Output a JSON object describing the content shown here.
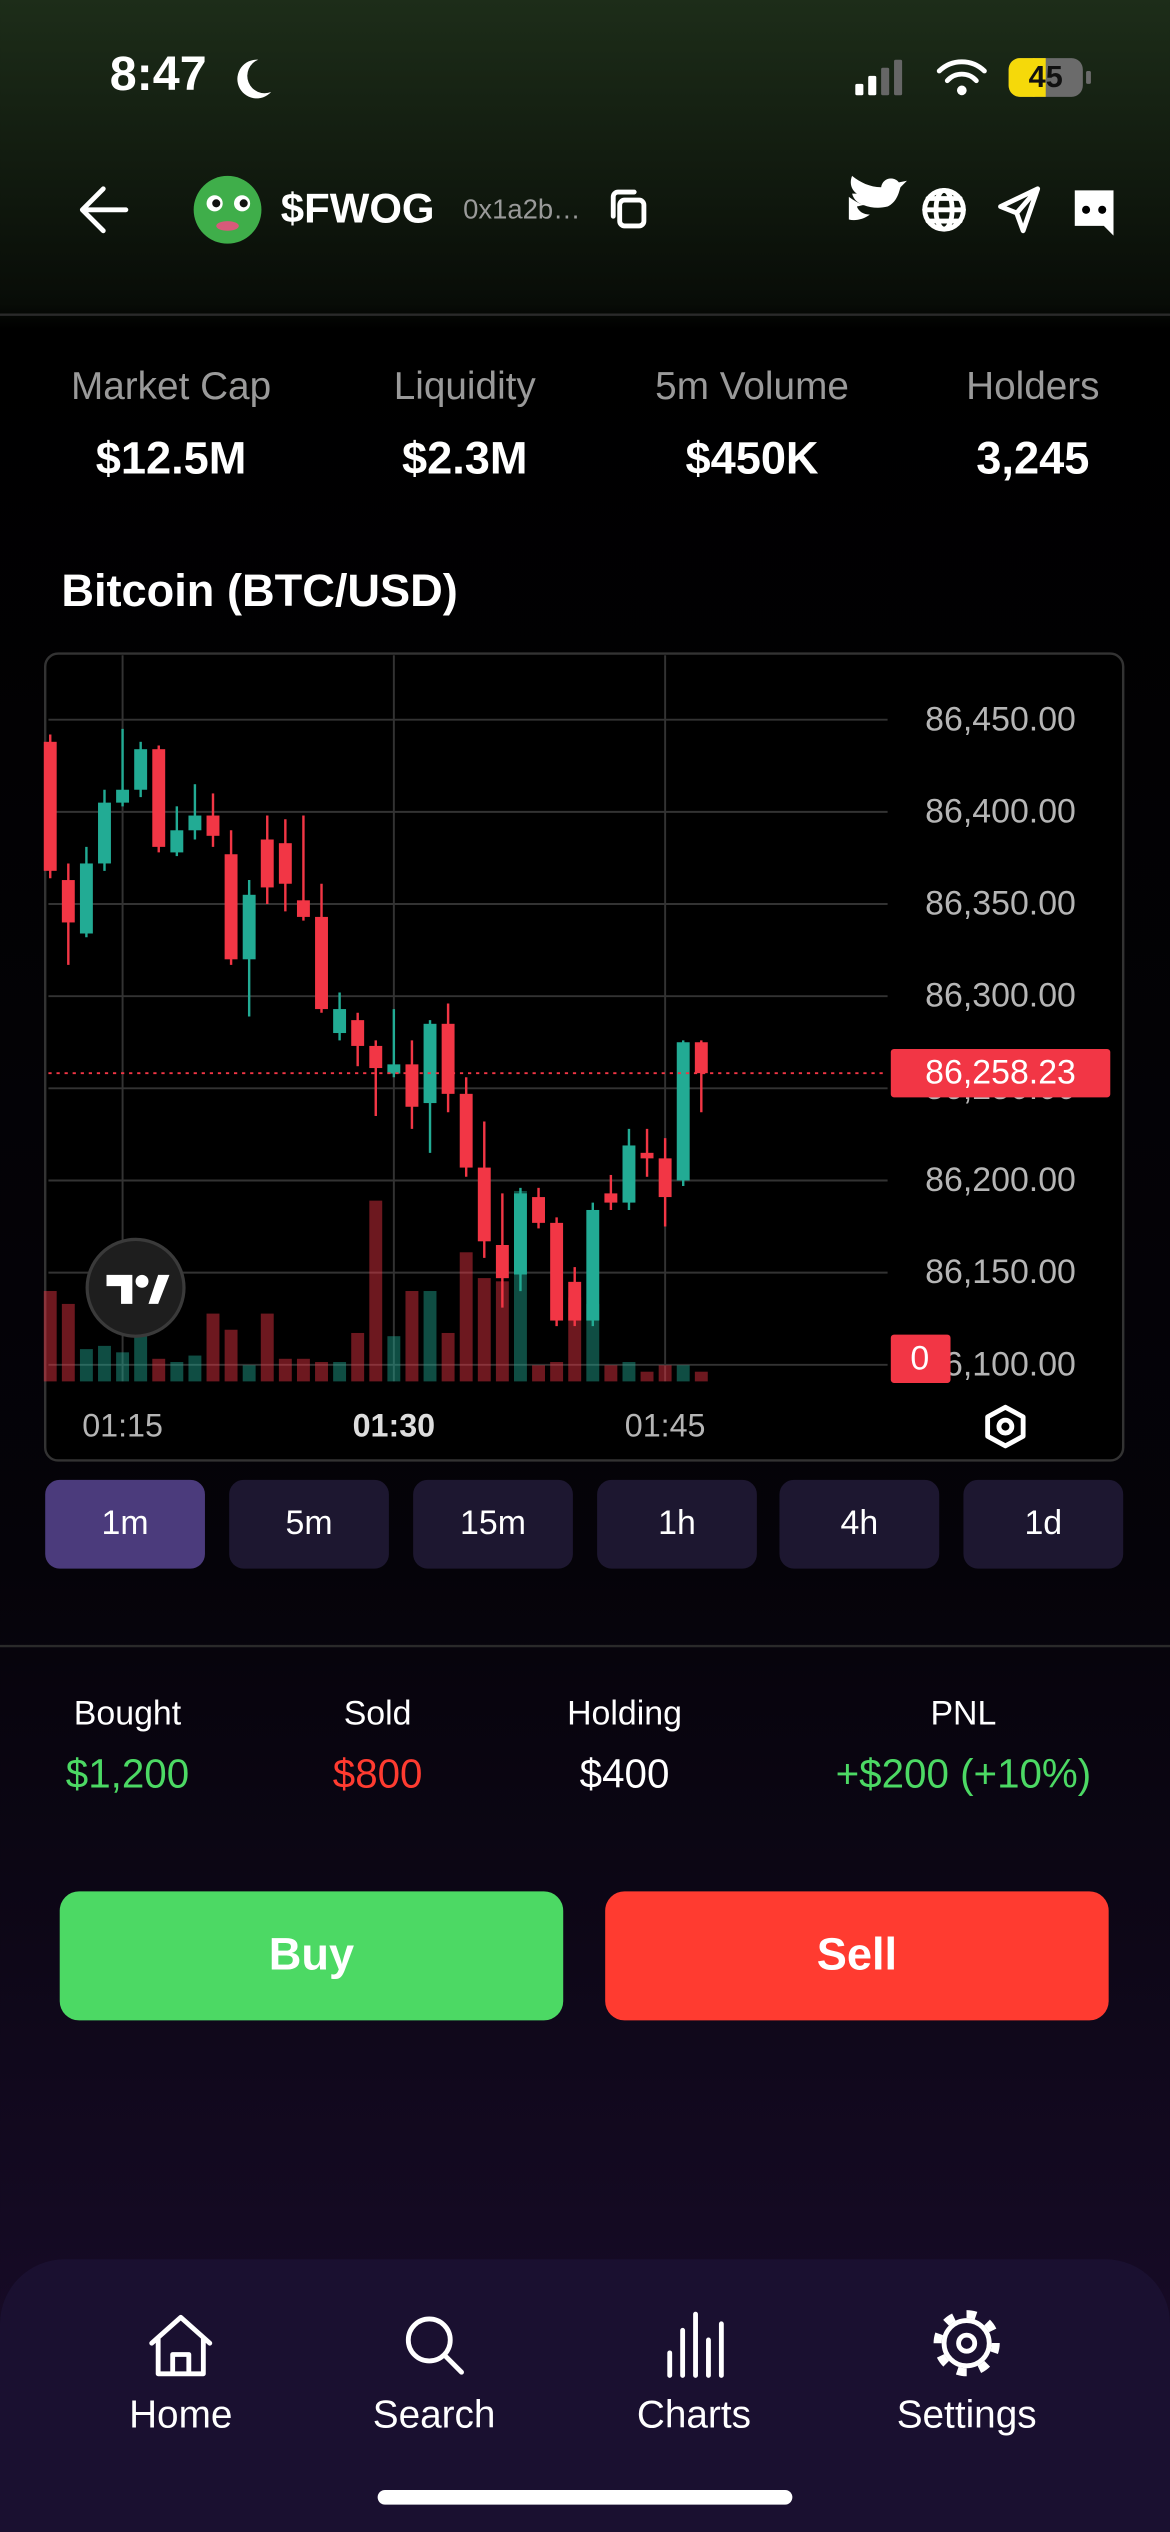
{
  "status_bar": {
    "time": "8:47",
    "battery": "45"
  },
  "header": {
    "symbol": "$FWOG",
    "address": "0x1a2b…"
  },
  "stats": [
    {
      "label": "Market Cap",
      "value": "$12.5M"
    },
    {
      "label": "Liquidity",
      "value": "$2.3M"
    },
    {
      "label": "5m Volume",
      "value": "$450K"
    },
    {
      "label": "Holders",
      "value": "3,245"
    }
  ],
  "chart_data": {
    "type": "candlestick",
    "title": "Bitcoin (BTC/USD)",
    "x": [
      71,
      72,
      73,
      74,
      75,
      76,
      77,
      78,
      79,
      80,
      81,
      82,
      83,
      84,
      85,
      86,
      87,
      88,
      89,
      90,
      91,
      92,
      93,
      94,
      95,
      96,
      97,
      98,
      99,
      100,
      101,
      102,
      103,
      104,
      105,
      106,
      107
    ],
    "open": [
      86438,
      86363,
      86334,
      86372,
      86405,
      86412,
      86434,
      86378,
      86390,
      86398,
      86377,
      86320,
      86385,
      86383,
      86352,
      86343,
      86280,
      86287,
      86273,
      86258,
      86263,
      86242,
      86285,
      86247,
      86207,
      86165,
      86149,
      86191,
      86177,
      86145,
      86124,
      86193,
      86188,
      86215,
      86212,
      86200,
      86275
    ],
    "high": [
      86442,
      86372,
      86381,
      86412,
      86445,
      86438,
      86436,
      86403,
      86415,
      86410,
      86390,
      86363,
      86398,
      86396,
      86398,
      86361,
      86302,
      86291,
      86276,
      86293,
      86276,
      86287,
      86296,
      86256,
      86232,
      86193,
      86196,
      86196,
      86180,
      86153,
      86188,
      86203,
      86228,
      86228,
      86223,
      86276,
      86276
    ],
    "low": [
      86364,
      86317,
      86332,
      86368,
      86403,
      86408,
      86378,
      86376,
      86385,
      86381,
      86317,
      86289,
      86350,
      86346,
      86341,
      86291,
      86276,
      86262,
      86235,
      86256,
      86228,
      86215,
      86237,
      86202,
      86158,
      86131,
      86140,
      86174,
      86121,
      86121,
      86121,
      86184,
      86184,
      86202,
      86175,
      86197,
      86237
    ],
    "close": [
      86368,
      86340,
      86372,
      86405,
      86412,
      86434,
      86381,
      86390,
      86398,
      86387,
      86320,
      86355,
      86359,
      86361,
      86343,
      86293,
      86293,
      86273,
      86261,
      86263,
      86240,
      86285,
      86247,
      86207,
      86167,
      86147,
      86193,
      86177,
      86124,
      86124,
      86184,
      86188,
      86219,
      86212,
      86191,
      86275,
      86258.23
    ],
    "volume": [
      56,
      48,
      20,
      22,
      18,
      28,
      14,
      12,
      16,
      42,
      32,
      10,
      42,
      14,
      14,
      12,
      12,
      30,
      112,
      28,
      56,
      56,
      30,
      80,
      64,
      62,
      118,
      10,
      12,
      52,
      48,
      10,
      12,
      6,
      10,
      10,
      6
    ],
    "up_color": "#22ab94",
    "down_color": "#f23645",
    "xlim": [
      70.9,
      117.3
    ],
    "ylim": [
      86091,
      86485
    ],
    "volume_ylim": [
      0,
      450
    ],
    "volume_ticks": [
      0
    ],
    "xticks": [
      {
        "value": 75,
        "label": "01:15"
      },
      {
        "value": 90,
        "label": "01:30"
      },
      {
        "value": 105,
        "label": "01:45"
      }
    ],
    "yticks": [
      {
        "value": 86450,
        "label": "86,450.00"
      },
      {
        "value": 86400,
        "label": "86,400.00"
      },
      {
        "value": 86350,
        "label": "86,350.00"
      },
      {
        "value": 86300,
        "label": "86,300.00"
      },
      {
        "value": 86250,
        "label": "86,250.00"
      },
      {
        "value": 86200,
        "label": "86,200.00"
      },
      {
        "value": 86150,
        "label": "86,150.00"
      },
      {
        "value": 86100,
        "label": "86,100.00"
      }
    ],
    "price_line": {
      "value": 86258.23,
      "label": "86,258.23"
    },
    "grid": true
  },
  "timeframes": [
    "1m",
    "5m",
    "15m",
    "1h",
    "4h",
    "1d"
  ],
  "active_timeframe": 0,
  "position": [
    {
      "label": "Bought",
      "value": "$1,200",
      "color": "#4cd964"
    },
    {
      "label": "Sold",
      "value": "$800",
      "color": "#ff3b30"
    },
    {
      "label": "Holding",
      "value": "$400",
      "color": "#ffffff"
    },
    {
      "label": "PNL",
      "value": "+$200 (+10%)",
      "color": "#4cd964"
    }
  ],
  "actions": [
    {
      "label": "Buy",
      "color": "#4cd964"
    },
    {
      "label": "Sell",
      "color": "#ff3b30"
    }
  ],
  "nav": [
    "Home",
    "Search",
    "Charts",
    "Settings"
  ]
}
